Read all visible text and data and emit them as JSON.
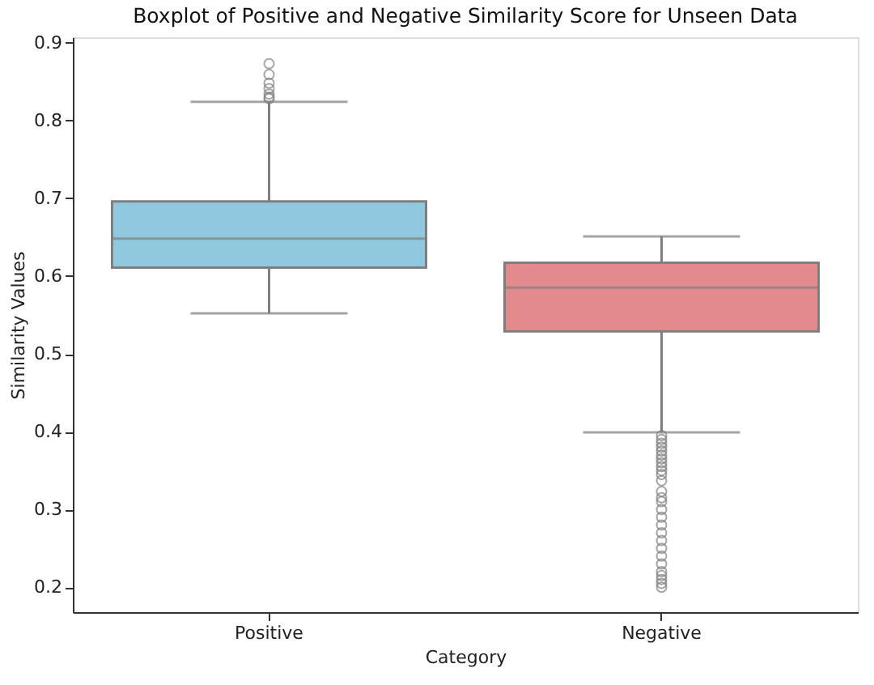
{
  "chart_data": {
    "type": "box",
    "title": "Boxplot of Positive and Negative Similarity Score for Unseen Data",
    "xlabel": "Category",
    "ylabel": "Similarity Values",
    "categories": [
      "Positive",
      "Negative"
    ],
    "colors": [
      "#90c8df",
      "#e38b8c"
    ],
    "boxes": [
      {
        "low": 0.552,
        "q1": 0.611,
        "median": 0.648,
        "q3": 0.696,
        "high": 0.824,
        "outliers": [
          0.873,
          0.859,
          0.848,
          0.841,
          0.834,
          0.83,
          0.828
        ]
      },
      {
        "low": 0.399,
        "q1": 0.529,
        "median": 0.585,
        "q3": 0.617,
        "high": 0.651,
        "outliers": [
          0.395,
          0.39,
          0.385,
          0.38,
          0.375,
          0.37,
          0.365,
          0.36,
          0.355,
          0.35,
          0.345,
          0.337,
          0.323,
          0.315,
          0.31,
          0.3,
          0.29,
          0.28,
          0.27,
          0.26,
          0.25,
          0.24,
          0.23,
          0.22,
          0.215,
          0.21,
          0.205,
          0.2
        ]
      }
    ],
    "ylim": [
      0.168,
      0.907
    ],
    "yticks": [
      0.2,
      0.3,
      0.4,
      0.5,
      0.6,
      0.7,
      0.8,
      0.9
    ],
    "grid": false
  }
}
